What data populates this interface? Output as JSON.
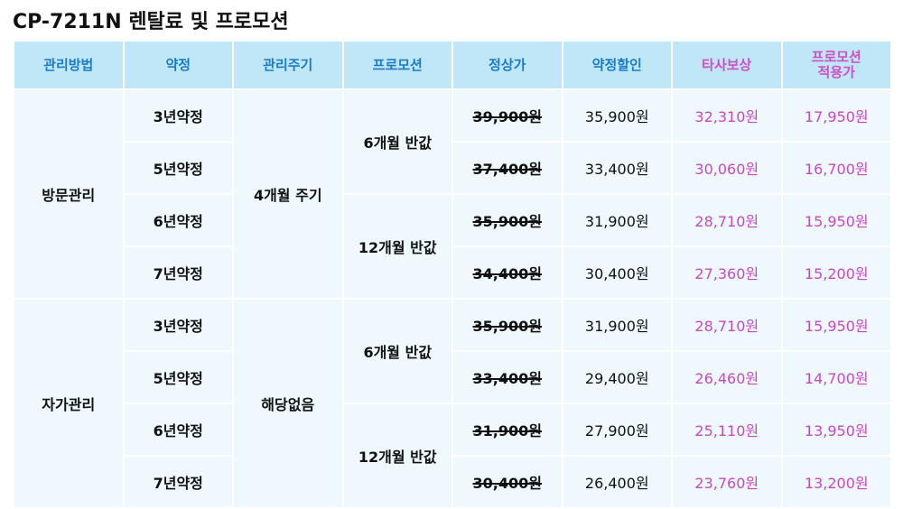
{
  "header": {
    "title": "CP-7211N 렌탈료 및 프로모션"
  },
  "table": {
    "columns": [
      "관리방법",
      "약정",
      "관리주기",
      "프로모션",
      "정상가",
      "약정할인",
      "타사보상",
      "프로모션\n적용가"
    ],
    "groups": [
      {
        "method": "방문관리",
        "cycle": "4개월 주기",
        "promos": [
          {
            "label": "6개월 반값",
            "rows": [
              [
                "3년약정",
                "39,900원",
                "35,900원",
                "32,310원",
                "17,950원"
              ],
              [
                "5년약정",
                "37,400원",
                "33,400원",
                "30,060원",
                "16,700원"
              ]
            ]
          },
          {
            "label": "12개월 반값",
            "rows": [
              [
                "6년약정",
                "35,900원",
                "31,900원",
                "28,710원",
                "15,950원"
              ],
              [
                "7년약정",
                "34,400원",
                "30,400원",
                "27,360원",
                "15,200원"
              ]
            ]
          }
        ]
      },
      {
        "method": "자가관리",
        "cycle": "해당없음",
        "promos": [
          {
            "label": "6개월 반값",
            "rows": [
              [
                "3년약정",
                "35,900원",
                "31,900원",
                "28,710원",
                "15,950원"
              ],
              [
                "5년약정",
                "33,400원",
                "29,400원",
                "26,460원",
                "14,700원"
              ]
            ]
          },
          {
            "label": "12개월 반값",
            "rows": [
              [
                "6년약정",
                "31,900원",
                "27,900원",
                "25,110원",
                "13,950원"
              ],
              [
                "7년약정",
                "30,400원",
                "26,400원",
                "23,760원",
                "13,200원"
              ]
            ]
          }
        ]
      }
    ]
  }
}
